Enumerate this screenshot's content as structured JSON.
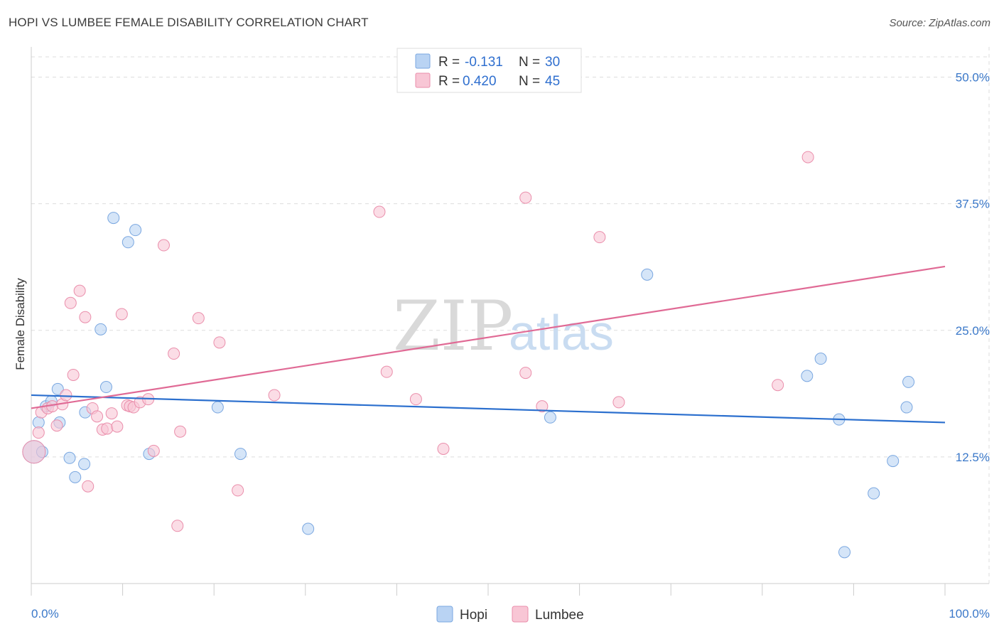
{
  "header": {
    "title": "HOPI VS LUMBEE FEMALE DISABILITY CORRELATION CHART",
    "source": "Source: ZipAtlas.com"
  },
  "colors": {
    "hopi_fill": "#b9d3f3",
    "hopi_stroke": "#7aa7e0",
    "hopi_line": "#2b6fce",
    "lumbee_fill": "#f8c6d5",
    "lumbee_stroke": "#ea8eab",
    "lumbee_line": "#e06a95",
    "grid": "#dddddd",
    "tick_text": "#3a78c9"
  },
  "legend": {
    "rows": [
      {
        "r_label": "R =",
        "r_value": "-0.131",
        "n_label": "N =",
        "n_value": "30"
      },
      {
        "r_label": "R =",
        "r_value": "0.420",
        "n_label": "N =",
        "n_value": "45"
      }
    ]
  },
  "bottom_legend": [
    "Hopi",
    "Lumbee"
  ],
  "watermark": {
    "zip": "ZIP",
    "atlas": "atlas"
  },
  "chart_data": {
    "type": "scatter",
    "xlabel": "",
    "ylabel": "Female Disability",
    "xlim": [
      0,
      100
    ],
    "ylim": [
      0,
      52
    ],
    "x_tick_labels": [
      {
        "value": 0,
        "label": "0.0%"
      },
      {
        "value": 100,
        "label": "100.0%"
      }
    ],
    "y_ticks": [
      {
        "value": 12.5,
        "label": "12.5%"
      },
      {
        "value": 25,
        "label": "25.0%"
      },
      {
        "value": 37.5,
        "label": "37.5%"
      },
      {
        "value": 50,
        "label": "50.0%"
      }
    ],
    "grid": true,
    "legend_position": "top-center",
    "series": [
      {
        "name": "Hopi",
        "r": -0.131,
        "n": 30,
        "trend": {
          "x": [
            0,
            100
          ],
          "y": [
            18.6,
            15.9
          ]
        },
        "points": [
          {
            "x": 0.3,
            "y": 13.0,
            "big": true
          },
          {
            "x": 0.8,
            "y": 15.9
          },
          {
            "x": 1.2,
            "y": 13.0
          },
          {
            "x": 1.6,
            "y": 17.5
          },
          {
            "x": 2.2,
            "y": 18.0
          },
          {
            "x": 2.9,
            "y": 19.2
          },
          {
            "x": 3.1,
            "y": 15.9
          },
          {
            "x": 4.2,
            "y": 12.4
          },
          {
            "x": 4.8,
            "y": 10.5
          },
          {
            "x": 5.8,
            "y": 11.8
          },
          {
            "x": 5.9,
            "y": 16.9
          },
          {
            "x": 7.6,
            "y": 25.1
          },
          {
            "x": 8.2,
            "y": 19.4
          },
          {
            "x": 9.0,
            "y": 36.1
          },
          {
            "x": 10.6,
            "y": 33.7
          },
          {
            "x": 11.4,
            "y": 34.9
          },
          {
            "x": 12.9,
            "y": 12.8
          },
          {
            "x": 20.4,
            "y": 17.4
          },
          {
            "x": 22.9,
            "y": 12.8
          },
          {
            "x": 30.3,
            "y": 5.4
          },
          {
            "x": 56.8,
            "y": 16.4
          },
          {
            "x": 67.4,
            "y": 30.5
          },
          {
            "x": 84.9,
            "y": 20.5
          },
          {
            "x": 86.4,
            "y": 22.2
          },
          {
            "x": 88.4,
            "y": 16.2
          },
          {
            "x": 89.0,
            "y": 3.1
          },
          {
            "x": 92.2,
            "y": 8.9
          },
          {
            "x": 94.3,
            "y": 12.1
          },
          {
            "x": 95.8,
            "y": 17.4
          },
          {
            "x": 96.0,
            "y": 19.9
          }
        ]
      },
      {
        "name": "Lumbee",
        "r": 0.42,
        "n": 45,
        "trend": {
          "x": [
            0,
            100
          ],
          "y": [
            17.3,
            31.3
          ]
        },
        "points": [
          {
            "x": 0.3,
            "y": 13.0,
            "big": true
          },
          {
            "x": 0.8,
            "y": 14.9
          },
          {
            "x": 1.1,
            "y": 16.9
          },
          {
            "x": 1.8,
            "y": 17.3
          },
          {
            "x": 2.3,
            "y": 17.5
          },
          {
            "x": 2.8,
            "y": 15.6
          },
          {
            "x": 3.4,
            "y": 17.7
          },
          {
            "x": 3.8,
            "y": 18.6
          },
          {
            "x": 4.3,
            "y": 27.7
          },
          {
            "x": 4.6,
            "y": 20.6
          },
          {
            "x": 5.3,
            "y": 28.9
          },
          {
            "x": 5.9,
            "y": 26.3
          },
          {
            "x": 6.2,
            "y": 9.6
          },
          {
            "x": 6.7,
            "y": 17.3
          },
          {
            "x": 7.2,
            "y": 16.5
          },
          {
            "x": 7.8,
            "y": 15.2
          },
          {
            "x": 8.3,
            "y": 15.3
          },
          {
            "x": 8.8,
            "y": 16.8
          },
          {
            "x": 9.4,
            "y": 15.5
          },
          {
            "x": 9.9,
            "y": 26.6
          },
          {
            "x": 10.5,
            "y": 17.6
          },
          {
            "x": 10.8,
            "y": 17.5
          },
          {
            "x": 11.2,
            "y": 17.4
          },
          {
            "x": 11.9,
            "y": 17.9
          },
          {
            "x": 12.8,
            "y": 18.2
          },
          {
            "x": 13.4,
            "y": 13.1
          },
          {
            "x": 14.5,
            "y": 33.4
          },
          {
            "x": 15.6,
            "y": 22.7
          },
          {
            "x": 16.0,
            "y": 5.7
          },
          {
            "x": 16.3,
            "y": 15.0
          },
          {
            "x": 18.3,
            "y": 26.2
          },
          {
            "x": 20.6,
            "y": 23.8
          },
          {
            "x": 22.6,
            "y": 9.2
          },
          {
            "x": 26.6,
            "y": 18.6
          },
          {
            "x": 38.1,
            "y": 36.7
          },
          {
            "x": 38.9,
            "y": 20.9
          },
          {
            "x": 42.1,
            "y": 18.2
          },
          {
            "x": 45.1,
            "y": 13.3
          },
          {
            "x": 54.1,
            "y": 38.1
          },
          {
            "x": 54.1,
            "y": 20.8
          },
          {
            "x": 55.9,
            "y": 17.5
          },
          {
            "x": 62.2,
            "y": 34.2
          },
          {
            "x": 64.3,
            "y": 17.9
          },
          {
            "x": 81.7,
            "y": 19.6
          },
          {
            "x": 85.0,
            "y": 42.1
          }
        ]
      }
    ]
  }
}
